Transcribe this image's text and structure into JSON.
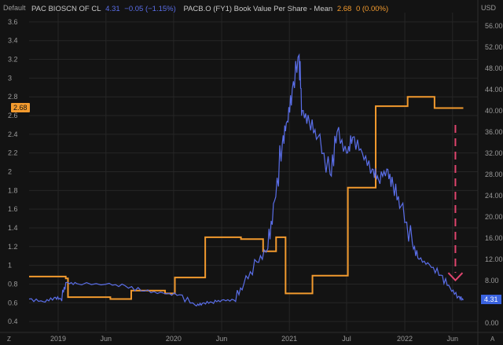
{
  "header": {
    "left_scale_label": "Default",
    "right_scale_label": "USD",
    "bottom_left": "Z",
    "bottom_right": "A"
  },
  "legend": {
    "price_name": "PAC BIOSCN OF CL",
    "price_value": "4.31",
    "price_change": "−0.05 (−1.15%)",
    "bvps_name": "PACB.O (FY1) Book Value Per Share - Mean",
    "bvps_value": "2.68",
    "bvps_change": "0 (0.00%)"
  },
  "badges": {
    "left": "2.68",
    "right": "4.31"
  },
  "colors": {
    "background": "#131313",
    "grid": "#262626",
    "price_line": "#5a6ee8",
    "bvps_line": "#f29a2e",
    "arrow": "#e0456e"
  },
  "chart_data": {
    "type": "line",
    "x_axis": {
      "ticks": [
        "2019",
        "Jun",
        "2020",
        "Jun",
        "2021",
        "Jul",
        "2022",
        "Jun"
      ]
    },
    "left_axis": {
      "ticks": [
        "0.4",
        "0.6",
        "0.8",
        "1",
        "1.2",
        "1.4",
        "1.6",
        "1.8",
        "2",
        "2.2",
        "2.4",
        "2.6",
        "2.8",
        "3",
        "3.2",
        "3.4",
        "3.6"
      ],
      "range": [
        0.3,
        3.7
      ]
    },
    "right_axis": {
      "ticks": [
        "0.00",
        "4.00",
        "8.00",
        "12.00",
        "16.00",
        "20.00",
        "24.00",
        "28.00",
        "32.00",
        "36.00",
        "40.00",
        "44.00",
        "48.00",
        "52.00",
        "56.00"
      ],
      "range": [
        -1.5,
        58.5
      ]
    },
    "series": [
      {
        "name": "PAC BIOSCN OF CL",
        "axis": "right",
        "points": [
          [
            "2018-10-01",
            4.5
          ],
          [
            "2018-11-15",
            4.0
          ],
          [
            "2018-12-20",
            4.8
          ],
          [
            "2019-01-10",
            4.5
          ],
          [
            "2019-01-25",
            7.6
          ],
          [
            "2019-03-01",
            7.4
          ],
          [
            "2019-06-01",
            7.3
          ],
          [
            "2019-08-01",
            7.0
          ],
          [
            "2019-10-01",
            6.0
          ],
          [
            "2019-12-01",
            5.6
          ],
          [
            "2020-01-20",
            5.3
          ],
          [
            "2020-03-10",
            3.3
          ],
          [
            "2020-04-01",
            3.7
          ],
          [
            "2020-05-01",
            3.9
          ],
          [
            "2020-06-01",
            4.3
          ],
          [
            "2020-07-10",
            4.3
          ],
          [
            "2020-08-10",
            7.3
          ],
          [
            "2020-09-20",
            11.5
          ],
          [
            "2020-10-25",
            14.0
          ],
          [
            "2020-11-15",
            23.0
          ],
          [
            "2020-12-10",
            34.0
          ],
          [
            "2020-12-25",
            38.0
          ],
          [
            "2021-01-10",
            44.0
          ],
          [
            "2021-02-01",
            50.5
          ],
          [
            "2021-02-10",
            40.0
          ],
          [
            "2021-03-05",
            38.0
          ],
          [
            "2021-04-01",
            35.0
          ],
          [
            "2021-05-10",
            28.0
          ],
          [
            "2021-06-01",
            36.0
          ],
          [
            "2021-07-01",
            32.0
          ],
          [
            "2021-07-20",
            35.0
          ],
          [
            "2021-08-20",
            32.0
          ],
          [
            "2021-09-20",
            29.0
          ],
          [
            "2021-10-10",
            27.0
          ],
          [
            "2021-11-05",
            29.0
          ],
          [
            "2021-11-25",
            26.0
          ],
          [
            "2021-12-20",
            22.0
          ],
          [
            "2022-01-25",
            15.0
          ],
          [
            "2022-02-15",
            12.0
          ],
          [
            "2022-03-20",
            11.0
          ],
          [
            "2022-04-25",
            9.0
          ],
          [
            "2022-05-25",
            6.5
          ],
          [
            "2022-06-20",
            5.0
          ],
          [
            "2022-07-05",
            4.31
          ]
        ]
      },
      {
        "name": "PACB.O (FY1) Book Value Per Share - Mean",
        "axis": "left",
        "step": true,
        "points": [
          [
            "2018-10-01",
            0.88
          ],
          [
            "2019-01-25",
            0.86
          ],
          [
            "2019-02-01",
            0.66
          ],
          [
            "2019-06-15",
            0.64
          ],
          [
            "2019-08-20",
            0.73
          ],
          [
            "2019-12-05",
            0.7
          ],
          [
            "2020-01-05",
            0.87
          ],
          [
            "2020-04-10",
            1.3
          ],
          [
            "2020-08-01",
            1.28
          ],
          [
            "2020-10-10",
            1.15
          ],
          [
            "2020-11-20",
            1.3
          ],
          [
            "2020-12-20",
            0.7
          ],
          [
            "2021-03-15",
            0.89
          ],
          [
            "2021-07-05",
            1.83
          ],
          [
            "2021-10-01",
            2.7
          ],
          [
            "2022-01-10",
            2.8
          ],
          [
            "2022-04-05",
            2.68
          ],
          [
            "2022-07-05",
            2.68
          ]
        ]
      }
    ]
  }
}
